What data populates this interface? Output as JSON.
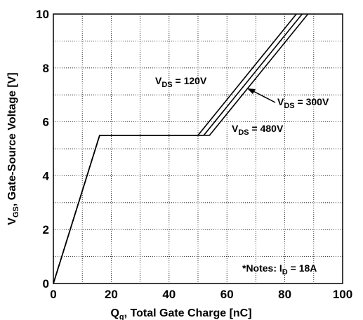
{
  "chart_data": {
    "type": "line",
    "title": "",
    "xlabel": {
      "main": "Q",
      "sub": "g",
      "rest": ", Total Gate Charge [nC]"
    },
    "ylabel": {
      "main": "V",
      "sub": "GS",
      "rest": ", Gate-Source Voltage [V]"
    },
    "xlim": [
      0,
      100
    ],
    "ylim": [
      0,
      10
    ],
    "xticks": [
      0,
      20,
      40,
      60,
      80,
      100
    ],
    "yticks": [
      0,
      2,
      4,
      6,
      8,
      10
    ],
    "grid": true,
    "series": [
      {
        "name": "VDS = 120V",
        "x": [
          0,
          16,
          50,
          84
        ],
        "y": [
          0,
          5.5,
          5.5,
          10
        ]
      },
      {
        "name": "VDS = 300V",
        "x": [
          0,
          16,
          52,
          86
        ],
        "y": [
          0,
          5.5,
          5.5,
          10
        ]
      },
      {
        "name": "VDS = 480V",
        "x": [
          0,
          16,
          54,
          88
        ],
        "y": [
          0,
          5.5,
          5.5,
          10
        ]
      }
    ],
    "annotations": [
      {
        "id": "vds120",
        "main": "V",
        "sub": "DS",
        "rest": " = 120V"
      },
      {
        "id": "vds300",
        "main": "V",
        "sub": "DS",
        "rest": " = 300V"
      },
      {
        "id": "vds480",
        "main": "V",
        "sub": "DS",
        "rest": " = 480V"
      },
      {
        "id": "notes",
        "main": "*Notes: I",
        "sub": "D",
        "rest": " = 18A"
      }
    ]
  }
}
